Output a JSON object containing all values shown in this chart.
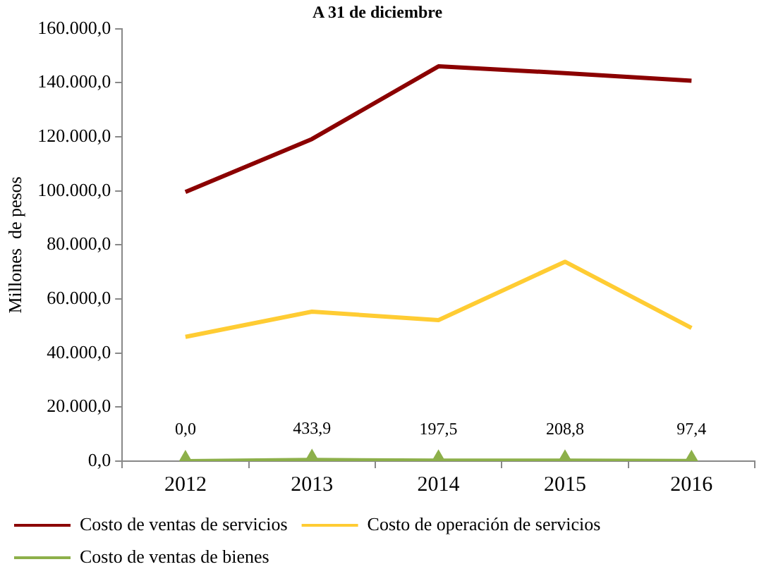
{
  "chart_data": {
    "type": "line",
    "title": "A 31 de diciembre",
    "ylabel": "Millones  de pesos",
    "categories": [
      "2012",
      "2013",
      "2014",
      "2015",
      "2016"
    ],
    "series": [
      {
        "name": "Costo de ventas de servicios",
        "color": "#8b0000",
        "values": [
          99600,
          119200,
          146100,
          143600,
          140800
        ],
        "marker": "none"
      },
      {
        "name": "Costo de operación de servicios",
        "color": "#ffcc33",
        "values": [
          46000,
          55300,
          52200,
          73800,
          49300
        ],
        "marker": "none"
      },
      {
        "name": "Costo de ventas de bienes",
        "color": "#8db04a",
        "values": [
          0,
          433.9,
          197.5,
          208.8,
          97.4
        ],
        "marker": "triangle",
        "value_labels": [
          "0,0",
          "433,9",
          "197,5",
          "208,8",
          "97,4"
        ]
      }
    ],
    "ylim": [
      0,
      160000
    ],
    "yticks": [
      {
        "value": 0,
        "label": "0,0"
      },
      {
        "value": 20000,
        "label": "20.000,0"
      },
      {
        "value": 40000,
        "label": "40.000,0"
      },
      {
        "value": 60000,
        "label": "60.000,0"
      },
      {
        "value": 80000,
        "label": "80.000,0"
      },
      {
        "value": 100000,
        "label": "100.000,0"
      },
      {
        "value": 120000,
        "label": "120.000,0"
      },
      {
        "value": 140000,
        "label": "140.000,0"
      },
      {
        "value": 160000,
        "label": "160.000,0"
      }
    ],
    "grid": false,
    "legend": "bottom",
    "line_style": "solid"
  }
}
